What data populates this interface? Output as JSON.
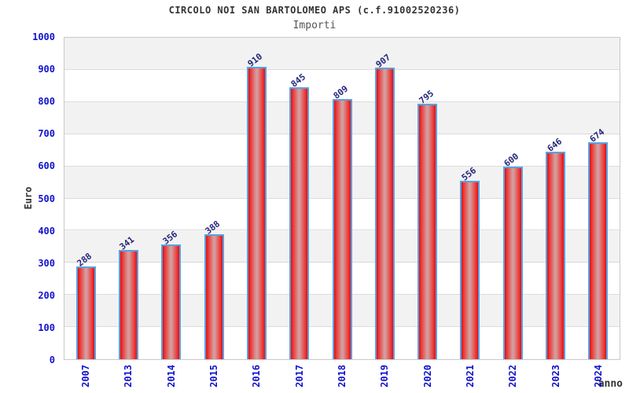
{
  "title": "CIRCOLO NOI SAN BARTOLOMEO APS (c.f.91002520236)",
  "subtitle": "Importi",
  "chart_data": {
    "type": "bar",
    "categories": [
      "2007",
      "2013",
      "2014",
      "2015",
      "2016",
      "2017",
      "2018",
      "2019",
      "2020",
      "2021",
      "2022",
      "2023",
      "2024"
    ],
    "values": [
      288,
      341,
      356,
      388,
      910,
      845,
      809,
      907,
      795,
      556,
      600,
      646,
      674
    ],
    "title": "CIRCOLO NOI SAN BARTOLOMEO APS (c.f.91002520236)",
    "subtitle": "Importi",
    "xlabel": "anno",
    "ylabel": "Euro",
    "ylim": [
      0,
      1000
    ],
    "yticks": [
      0,
      100,
      200,
      300,
      400,
      500,
      600,
      700,
      800,
      900,
      1000
    ],
    "grid": "horizontal-bands-alternating",
    "legend": "none"
  },
  "colors": {
    "bar_edge": "#dd0f0f",
    "bar_center": "#d49c9c",
    "bar_border": "#58a2e2",
    "axis_tick_label": "#1212cc",
    "value_label": "#26267d",
    "band_gray": "#f2f2f2",
    "band_white": "#ffffff",
    "gridline": "#dcdcdc",
    "title": "#333333",
    "subtitle": "#555555"
  }
}
